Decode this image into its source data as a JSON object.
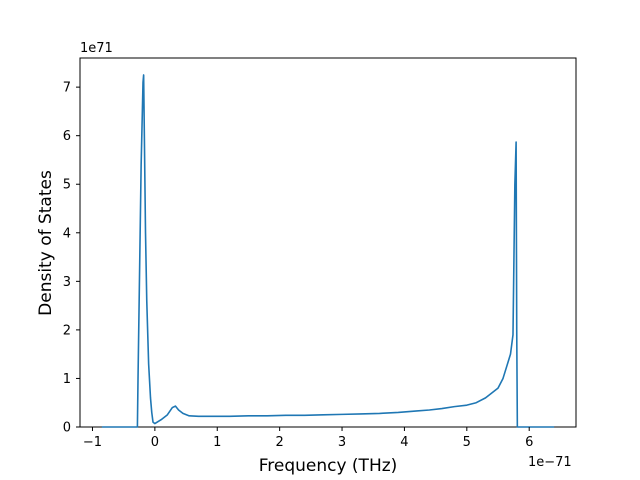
{
  "chart_data": {
    "type": "line",
    "xlabel": "Frequency (THz)",
    "ylabel": "Density of States",
    "x_offset_label": "1e−71",
    "y_offset_label": "1e71",
    "xlim": [
      -1.2,
      6.75
    ],
    "ylim": [
      0,
      7.6
    ],
    "x_scale_exponent": -71,
    "y_scale_exponent": 71,
    "x_ticks": [
      -1,
      0,
      1,
      2,
      3,
      4,
      5,
      6
    ],
    "x_tick_labels": [
      "−1",
      "0",
      "1",
      "2",
      "3",
      "4",
      "5",
      "6"
    ],
    "y_ticks": [
      0,
      1,
      2,
      3,
      4,
      5,
      6,
      7
    ],
    "y_tick_labels": [
      "0",
      "1",
      "2",
      "3",
      "4",
      "5",
      "6",
      "7"
    ],
    "grid": false,
    "line_color": "#1f77b4",
    "series": [
      {
        "x": [
          -0.85,
          -0.28,
          -0.27,
          -0.22,
          -0.19,
          -0.18,
          -0.15,
          -0.13,
          -0.1,
          -0.07,
          -0.05,
          -0.03,
          0.0,
          0.1,
          0.2,
          0.28,
          0.33,
          0.38,
          0.45,
          0.55,
          0.7,
          0.9,
          1.2,
          1.5,
          1.8,
          2.1,
          2.4,
          2.7,
          3.0,
          3.3,
          3.6,
          3.9,
          4.2,
          4.4,
          4.6,
          4.8,
          5.0,
          5.15,
          5.3,
          5.4,
          5.5,
          5.58,
          5.64,
          5.7,
          5.74,
          5.77,
          5.79,
          5.8,
          5.81,
          6.4
        ],
        "y": [
          0,
          0,
          1.0,
          5.4,
          7.1,
          7.25,
          4.0,
          2.6,
          1.3,
          0.6,
          0.3,
          0.1,
          0.07,
          0.15,
          0.25,
          0.4,
          0.43,
          0.35,
          0.28,
          0.23,
          0.22,
          0.22,
          0.22,
          0.23,
          0.23,
          0.24,
          0.24,
          0.25,
          0.26,
          0.27,
          0.28,
          0.3,
          0.33,
          0.35,
          0.38,
          0.42,
          0.45,
          0.5,
          0.6,
          0.7,
          0.8,
          1.0,
          1.25,
          1.5,
          1.9,
          5.0,
          5.87,
          2.0,
          0,
          0
        ]
      }
    ]
  }
}
